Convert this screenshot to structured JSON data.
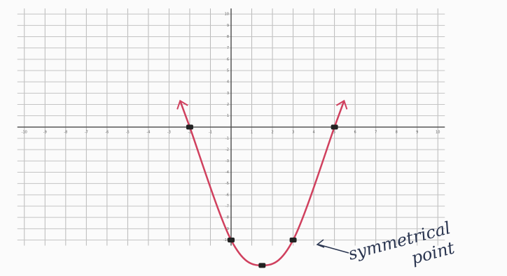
{
  "chart_data": {
    "type": "line",
    "x": [
      -2,
      0,
      1.5,
      3,
      5
    ],
    "series": [
      {
        "color": "#d0405e",
        "values": [
          0,
          -10,
          -12.25,
          -10,
          0
        ]
      }
    ],
    "xlim": [
      -10.5,
      10.5
    ],
    "ylim": [
      -13,
      11
    ],
    "xticks": [
      -10,
      -9,
      -8,
      -7,
      -6,
      -5,
      -4,
      -3,
      -2,
      -1,
      1,
      2,
      3,
      4,
      5,
      6,
      7,
      8,
      9,
      10
    ],
    "yticks": [
      -10,
      -9,
      -8,
      -7,
      -6,
      -5,
      -4,
      -3,
      -2,
      -1,
      1,
      2,
      3,
      4,
      5,
      6,
      7,
      8,
      9,
      10
    ],
    "grid": true,
    "marker_color": "#222222",
    "annotations": [
      "symmetrical",
      "point"
    ]
  }
}
